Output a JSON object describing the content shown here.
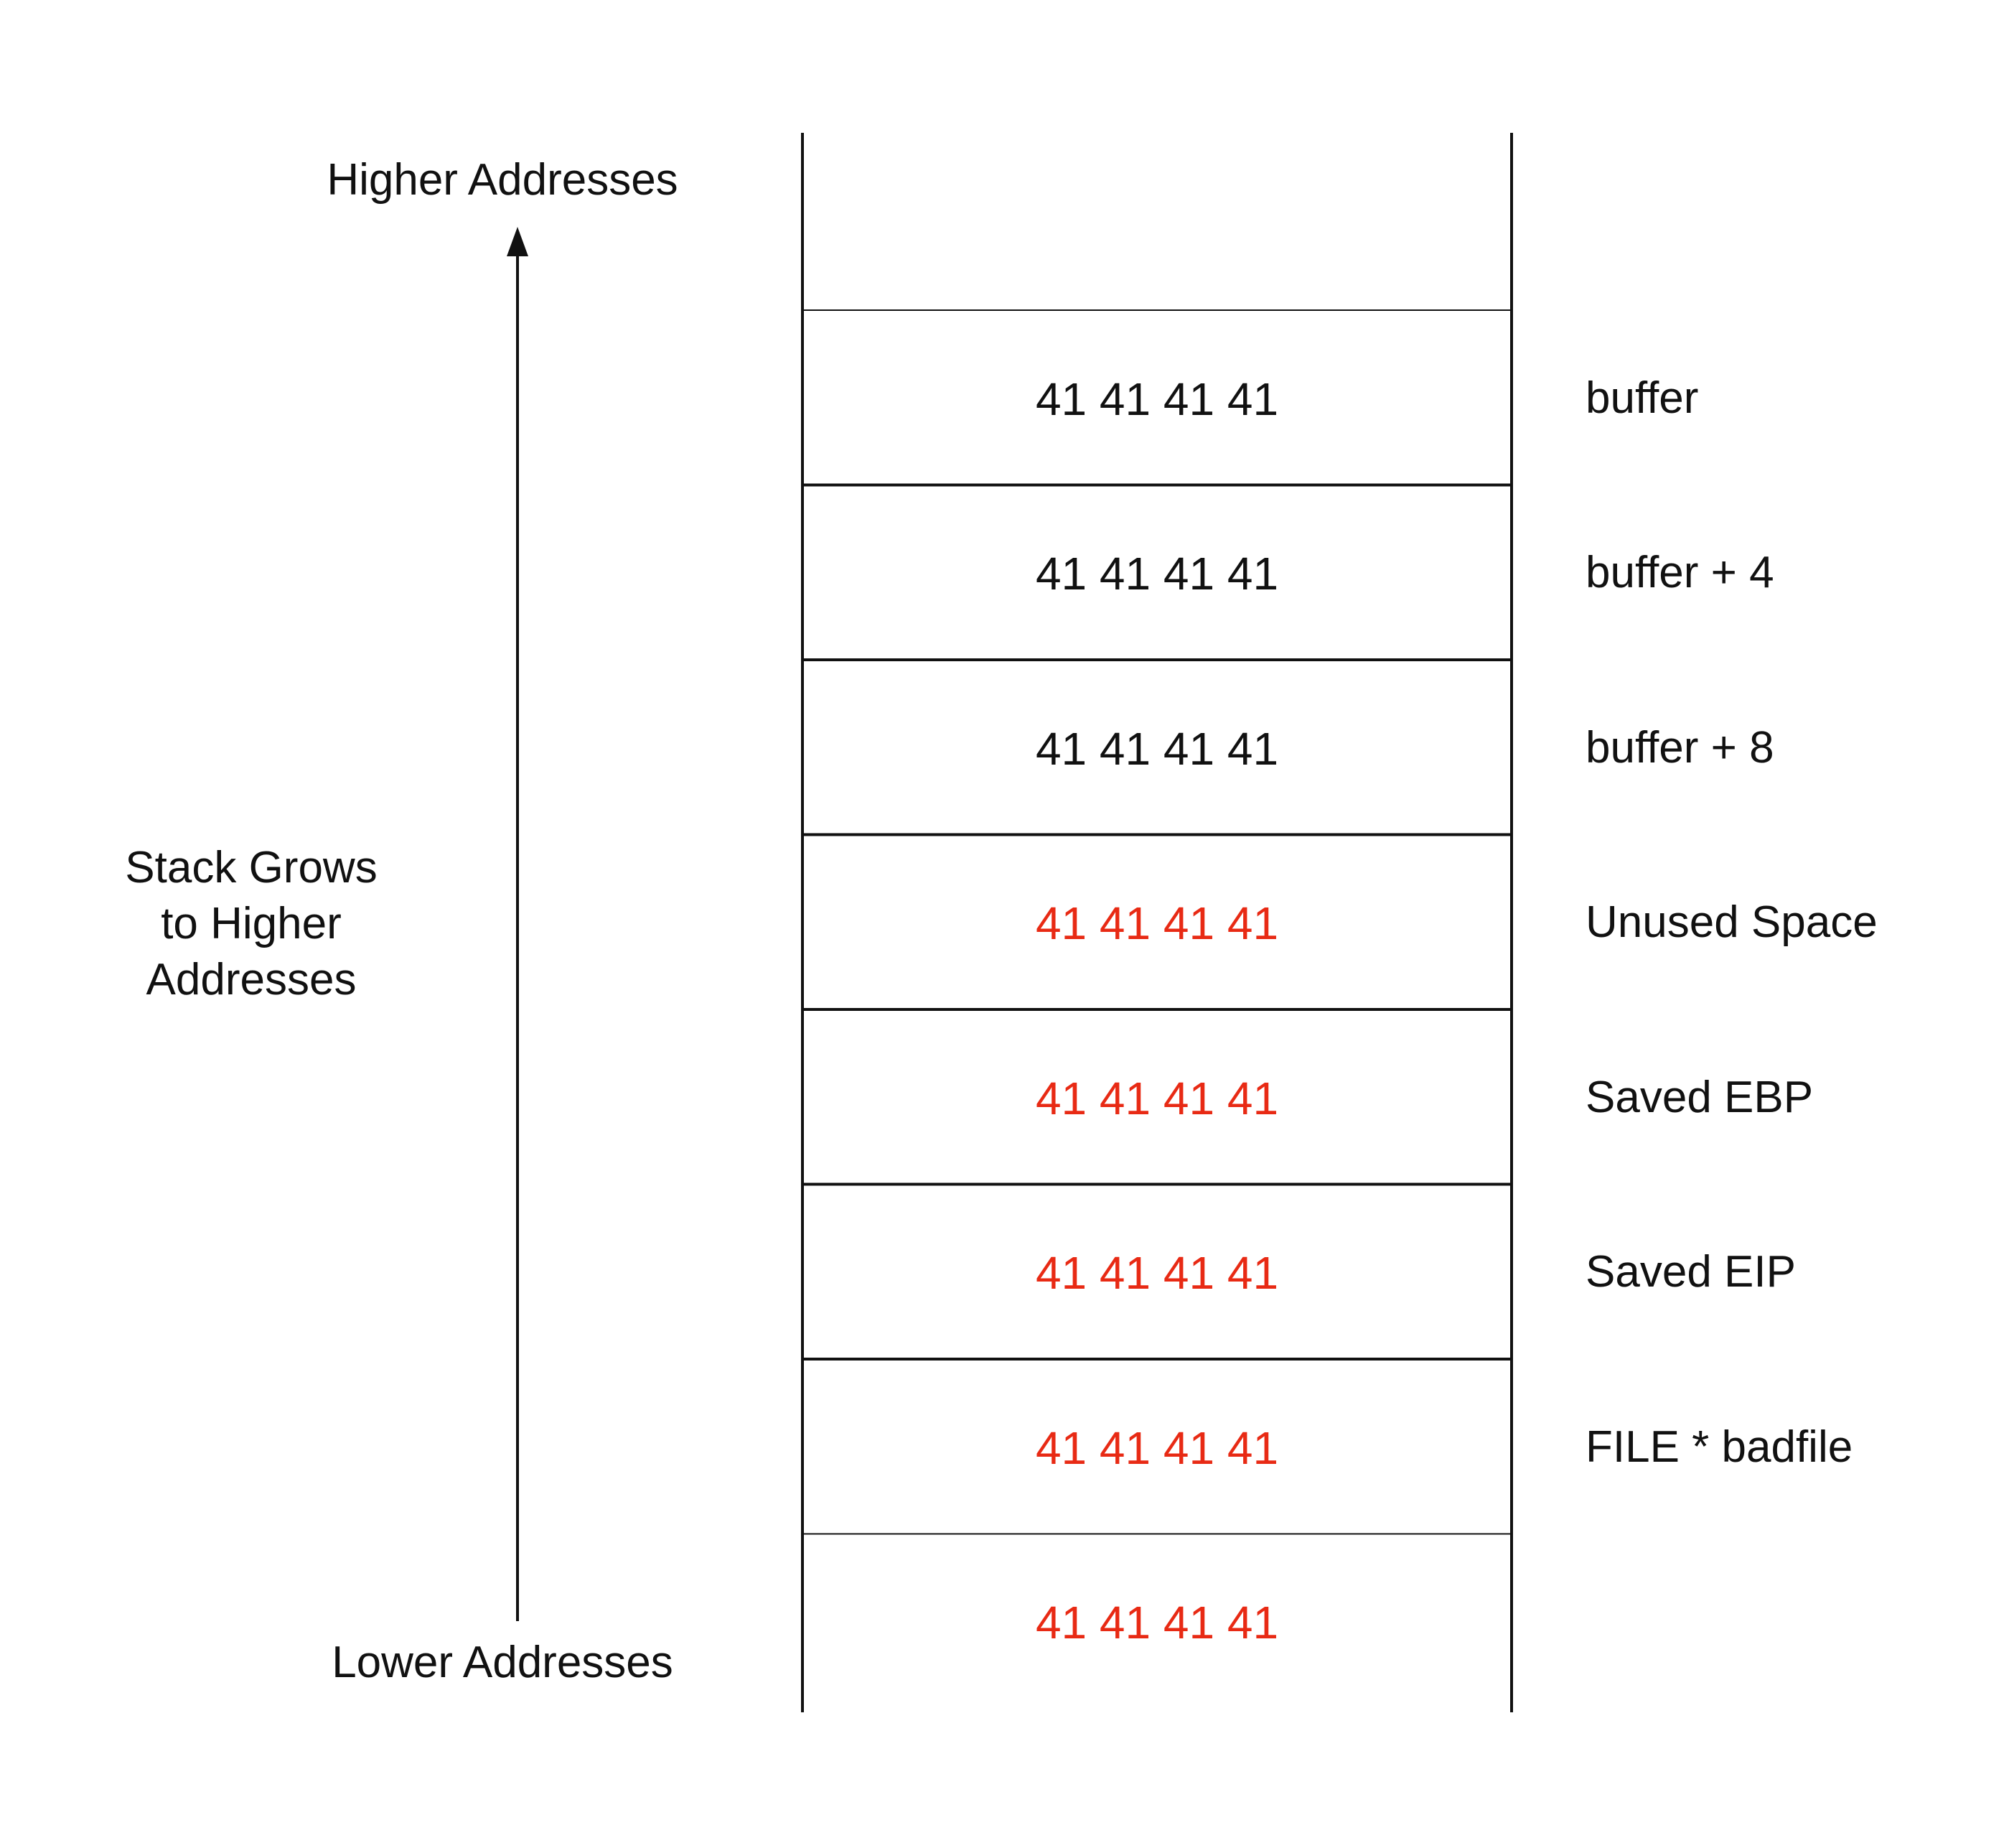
{
  "diagram": {
    "higher_label": "Higher Addresses",
    "lower_label": "Lower Addresses",
    "grow_label": [
      "Stack Grows",
      "to Higher",
      "Addresses"
    ],
    "colors": {
      "normal": "#111111",
      "overflow": "#e82a14"
    },
    "cells": [
      {
        "value": "41 41 41 41",
        "label": "buffer",
        "overflow": false
      },
      {
        "value": "41 41 41 41",
        "label": "buffer + 4",
        "overflow": false
      },
      {
        "value": "41 41 41 41",
        "label": "buffer + 8",
        "overflow": false
      },
      {
        "value": "41 41 41 41",
        "label": "Unused Space",
        "overflow": true
      },
      {
        "value": "41 41 41 41",
        "label": "Saved EBP",
        "overflow": true
      },
      {
        "value": "41 41 41 41",
        "label": "Saved EIP",
        "overflow": true
      },
      {
        "value": "41 41 41 41",
        "label": "FILE * badfile",
        "overflow": true
      },
      {
        "value": "41 41 41 41",
        "label": "",
        "overflow": true
      }
    ]
  }
}
